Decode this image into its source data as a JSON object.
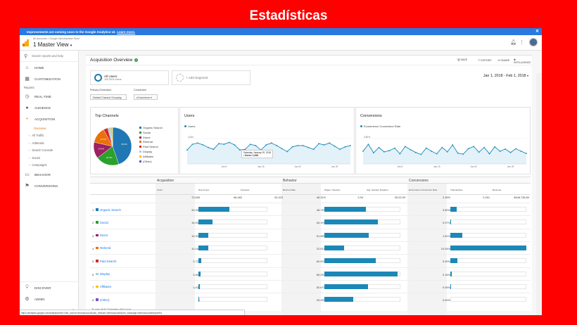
{
  "slide": {
    "title": "Estadísticas"
  },
  "banner": {
    "text": "Improvements are coming soon to the Google Analytics UI.",
    "link": "Learn more."
  },
  "account": {
    "breadcrumb": "All accounts > Google Merchandise Store",
    "view": "1 Master View"
  },
  "sidebar": {
    "search_placeholder": "Search reports and help",
    "home": "HOME",
    "customization": "CUSTOMIZATION",
    "reports_label": "Reports",
    "realtime": "REAL-TIME",
    "audience": "AUDIENCE",
    "acquisition": "ACQUISITION",
    "acq_items": [
      "Overview",
      "All Traffic",
      "AdWords",
      "Search Console",
      "Social",
      "Campaigns"
    ],
    "behavior": "BEHAVIOR",
    "conversions": "CONVERSIONS",
    "discover": "DISCOVER",
    "admin": "ADMIN"
  },
  "header": {
    "title": "Acquisition Overview",
    "save": "SAVE",
    "export": "EXPORT",
    "share": "SHARE",
    "intelligence": "INTELLIGENCE"
  },
  "segments": {
    "all_users": "All Users",
    "all_users_sub": "100.00% Users",
    "add": "+ Add Segment"
  },
  "date_range": "Jan 1, 2018 - Feb 1, 2018",
  "controls": {
    "primary_dimension_label": "Primary Dimension",
    "primary_dimension_value": "Default Channel Grouping",
    "conversion_label": "Conversion",
    "conversion_value": "eCommerce"
  },
  "panels": {
    "top_channels": "Top Channels",
    "users": "Users",
    "conversions": "Conversions",
    "users_series": "Users",
    "conv_series": "Ecommerce Conversion Rate",
    "users_y": [
      "4,000",
      "2,000"
    ],
    "conv_y": [
      "0.80%",
      "0.40%"
    ],
    "x_labels": [
      "Jan 8",
      "Jan 15",
      "Jan 22",
      "Jan 29"
    ],
    "tooltip_date": "Saturday, January 20, 2018",
    "tooltip_value": "• Users: 1,948"
  },
  "colors": {
    "organic": "#1f78b4",
    "social": "#2ca02c",
    "direct": "#9e1f63",
    "referral": "#e8710a",
    "paid": "#d62728",
    "display": "#a6cee3",
    "affiliates": "#f5c200",
    "other": "#7a4fbf",
    "bar": "#1b88b7"
  },
  "chart_data": [
    {
      "type": "pie",
      "categories": [
        "Organic Search",
        "Social",
        "Direct",
        "Referral",
        "Paid Search",
        "Display",
        "Affiliates",
        "(Other)"
      ],
      "values": [
        45.0,
        20.0,
        14.0,
        13.7,
        3.7,
        2.3,
        1.9,
        0.01
      ],
      "slice_labels": [
        "45.0%",
        "20.0%",
        "14.0%",
        "13.7%",
        "",
        "",
        "",
        ""
      ]
    },
    {
      "type": "line",
      "name": "Users",
      "x": [
        1,
        2,
        3,
        4,
        5,
        6,
        7,
        8,
        9,
        10,
        11,
        12,
        13,
        14,
        15,
        16,
        17,
        18,
        19,
        20,
        21,
        22,
        23,
        24,
        25,
        26,
        27,
        28,
        29,
        30,
        31,
        32
      ],
      "values": [
        2200,
        3100,
        3300,
        3000,
        2600,
        2300,
        3200,
        3100,
        3400,
        3000,
        2200,
        2300,
        3100,
        2900,
        2200,
        3000,
        3300,
        2900,
        2400,
        1948,
        2700,
        2900,
        2900,
        2600,
        2300,
        3200,
        3000,
        3300,
        2800,
        2300,
        2700,
        2900
      ],
      "ylim": [
        0,
        5000
      ]
    },
    {
      "type": "line",
      "name": "Ecommerce Conversion Rate",
      "x": [
        1,
        2,
        3,
        4,
        5,
        6,
        7,
        8,
        9,
        10,
        11,
        12,
        13,
        14,
        15,
        16,
        17,
        18,
        19,
        20,
        21,
        22,
        23,
        24,
        25,
        26,
        27,
        28,
        29,
        30,
        31,
        32
      ],
      "values": [
        0.4,
        0.62,
        0.35,
        0.52,
        0.38,
        0.42,
        0.5,
        0.32,
        0.55,
        0.45,
        0.36,
        0.3,
        0.5,
        0.4,
        0.32,
        0.52,
        0.38,
        0.6,
        0.34,
        0.31,
        0.48,
        0.55,
        0.37,
        0.52,
        0.32,
        0.54,
        0.4,
        0.47,
        0.36,
        0.48,
        0.4,
        0.33
      ],
      "ylim": [
        0,
        1.0
      ]
    }
  ],
  "table": {
    "groups": [
      "Acquisition",
      "Behavior",
      "Conversions"
    ],
    "columns": [
      "Users",
      "New Users",
      "Sessions",
      "Bounce Rate",
      "Pages / Session",
      "Avg. Session Duration",
      "Ecommerce Conversion Rate",
      "Transactions",
      "Revenue"
    ],
    "totals": [
      "72,845",
      "66,482",
      "92,423",
      "48.31%",
      "3.94",
      "00:02:09",
      "2.45%",
      "2,261",
      "$448,738.80"
    ],
    "rows": [
      {
        "idx": "1",
        "name": "Organic Search",
        "users": "33,397",
        "bounce": "48.74%",
        "conv": "0.80%",
        "new_users_frac": 0.45,
        "pages_frac": 0.55,
        "trans_frac": 0.08
      },
      {
        "idx": "2",
        "name": "Social",
        "users": "15,053",
        "bounce": "64.19%",
        "conv": "0.07%",
        "new_users_frac": 0.2,
        "pages_frac": 0.7,
        "trans_frac": 0.01
      },
      {
        "idx": "3",
        "name": "Direct",
        "users": "10,329",
        "bounce": "51.56%",
        "conv": "1.61%",
        "new_users_frac": 0.14,
        "pages_frac": 0.58,
        "trans_frac": 0.16
      },
      {
        "idx": "4",
        "name": "Referral",
        "users": "10,161",
        "bounce": "22.61%",
        "conv": "10.04%",
        "new_users_frac": 0.14,
        "pages_frac": 0.26,
        "trans_frac": 1.0
      },
      {
        "idx": "5",
        "name": "Paid Search",
        "users": "2,728",
        "bounce": "60.92%",
        "conv": "0.90%",
        "new_users_frac": 0.04,
        "pages_frac": 0.68,
        "trans_frac": 0.09
      },
      {
        "idx": "6",
        "name": "Display",
        "users": "1,696",
        "bounce": "85.25%",
        "conv": "0.16%",
        "new_users_frac": 0.03,
        "pages_frac": 0.96,
        "trans_frac": 0.02
      },
      {
        "idx": "7",
        "name": "Affiliates",
        "users": "1,434",
        "bounce": "50.67%",
        "conv": "0.05%",
        "new_users_frac": 0.02,
        "pages_frac": 0.57,
        "trans_frac": 0.005
      },
      {
        "idx": "8",
        "name": "(Other)",
        "users": "2",
        "bounce": "33.33%",
        "conv": "0.00%",
        "new_users_frac": 0.002,
        "pages_frac": 0.38,
        "trans_frac": 0.0
      }
    ],
    "footnote": "To see all 8 Channels click",
    "footnote_link": "here."
  },
  "status_url": "https://analytics.google.com/analytics/web/?utm_source=demoaccount&utm_medium=demoaccount&utm_campaign=demoaccount#report/tra"
}
